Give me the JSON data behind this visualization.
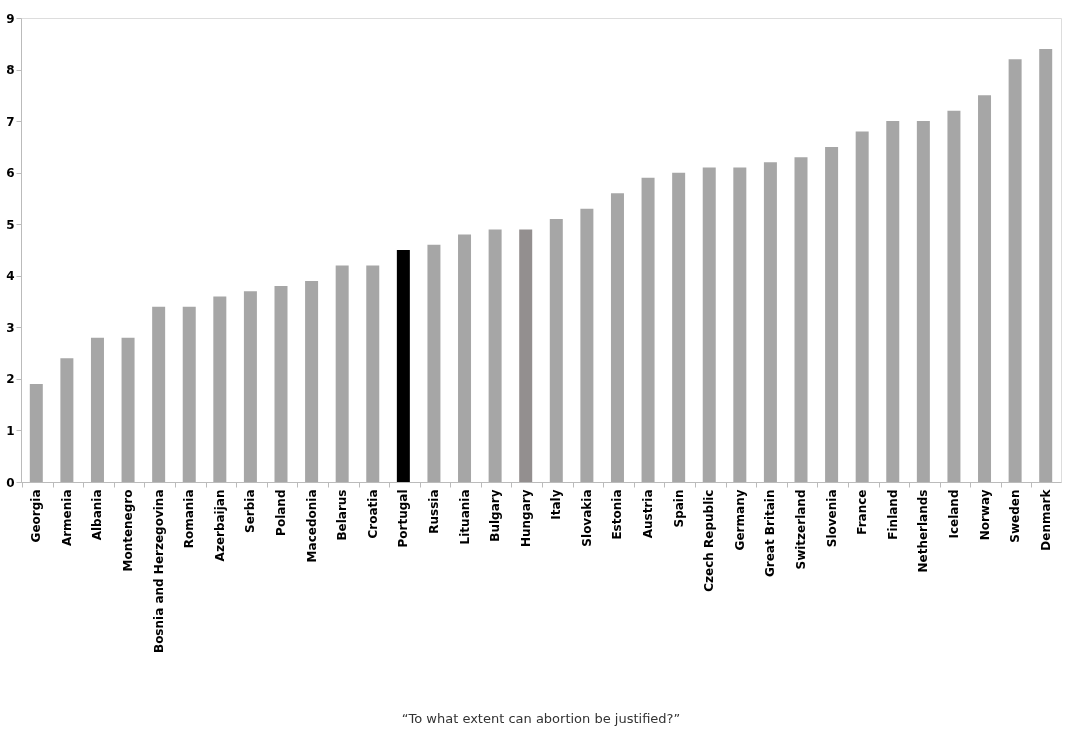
{
  "chart_data": {
    "type": "bar",
    "categories": [
      "Georgia",
      "Armenia",
      "Albania",
      "Montenegro",
      "Bosnia and Herzegovina",
      "Romania",
      "Azerbaijan",
      "Serbia",
      "Poland",
      "Macedonia",
      "Belarus",
      "Croatia",
      "Portugal",
      "Russia",
      "Lituania",
      "Bulgary",
      "Hungary",
      "Italy",
      "Slovakia",
      "Estonia",
      "Austria",
      "Spain",
      "Czech Republic",
      "Germany",
      "Great Britain",
      "Switzerland",
      "Slovenia",
      "France",
      "Finland",
      "Netherlands",
      "Iceland",
      "Norway",
      "Sweden",
      "Denmark"
    ],
    "values": [
      1.9,
      2.4,
      2.8,
      2.8,
      3.4,
      3.4,
      3.6,
      3.7,
      3.8,
      3.9,
      4.2,
      4.2,
      4.5,
      4.6,
      4.8,
      4.9,
      4.9,
      5.1,
      5.3,
      5.6,
      5.9,
      6.0,
      6.1,
      6.1,
      6.2,
      6.3,
      6.5,
      6.8,
      7.0,
      7.0,
      7.2,
      7.5,
      8.2,
      8.4
    ],
    "colors": [
      "#a6a6a6",
      "#a6a6a6",
      "#a6a6a6",
      "#a6a6a6",
      "#a6a6a6",
      "#a6a6a6",
      "#a6a6a6",
      "#a6a6a6",
      "#a6a6a6",
      "#a6a6a6",
      "#a6a6a6",
      "#a6a6a6",
      "#000000",
      "#a6a6a6",
      "#a6a6a6",
      "#a6a6a6",
      "#938f8f",
      "#a6a6a6",
      "#a6a6a6",
      "#a6a6a6",
      "#a6a6a6",
      "#a6a6a6",
      "#a6a6a6",
      "#a6a6a6",
      "#a6a6a6",
      "#a6a6a6",
      "#a6a6a6",
      "#a6a6a6",
      "#a6a6a6",
      "#a6a6a6",
      "#a6a6a6",
      "#a6a6a6",
      "#a6a6a6",
      "#a6a6a6"
    ],
    "ylim": [
      0,
      9
    ],
    "yticks": [
      0,
      1,
      2,
      3,
      4,
      5,
      6,
      7,
      8,
      9
    ],
    "grid": false,
    "legend": false,
    "annotations": [
      "“To what extent can abortion be justified?”"
    ]
  }
}
